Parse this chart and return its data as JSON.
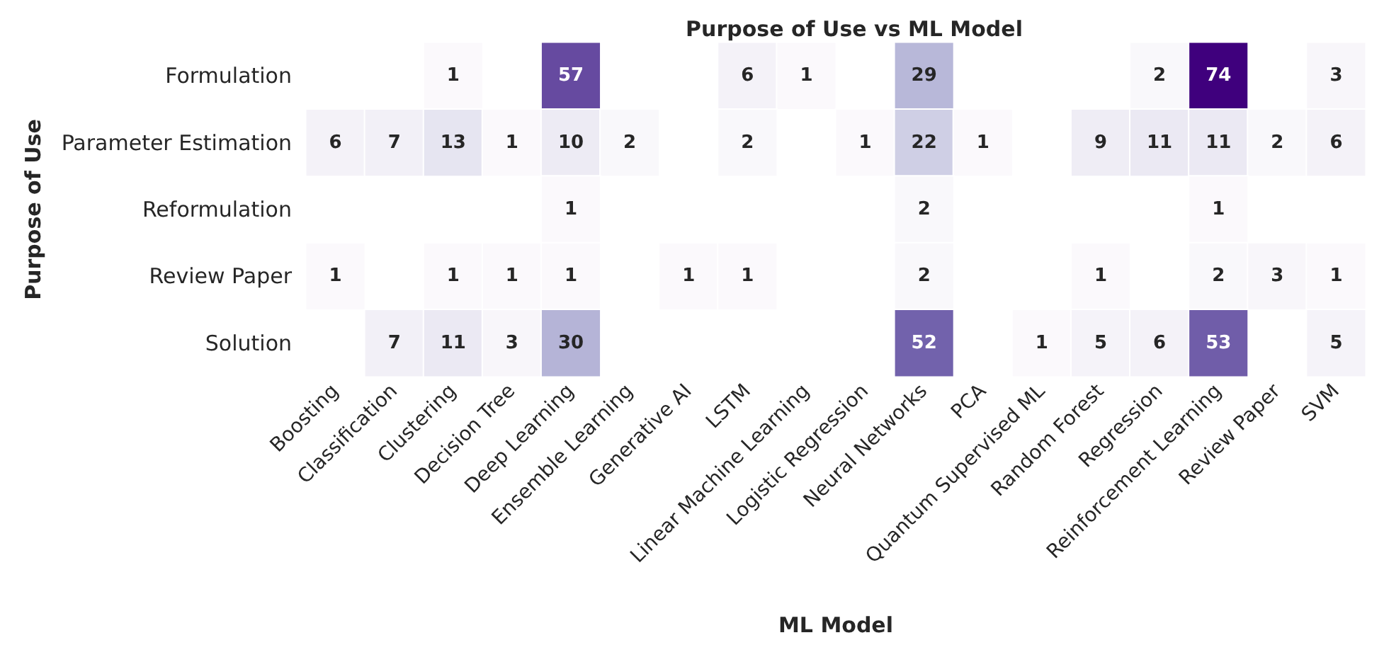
{
  "chart_data": {
    "type": "heatmap",
    "title": "Purpose of Use vs ML Model",
    "xlabel": "ML Model",
    "ylabel": "Purpose of Use",
    "categories": [
      "Boosting",
      "Classification",
      "Clustering",
      "Decision Tree",
      "Deep Learning",
      "Ensemble Learning",
      "Generative AI",
      "LSTM",
      "Linear Machine Learning",
      "Logistic Regression",
      "Neural Networks",
      "PCA",
      "Quantum Supervised ML",
      "Random Forest",
      "Regression",
      "Reinforcement Learning",
      "Review Paper",
      "SVM"
    ],
    "y_categories": [
      "Formulation",
      "Parameter Estimation",
      "Reformulation",
      "Review Paper",
      "Solution"
    ],
    "cells": [
      [
        null,
        null,
        1,
        null,
        57,
        null,
        null,
        6,
        1,
        null,
        29,
        null,
        null,
        null,
        2,
        74,
        null,
        3
      ],
      [
        6,
        7,
        13,
        1,
        10,
        2,
        null,
        2,
        null,
        1,
        22,
        1,
        null,
        9,
        11,
        11,
        2,
        6
      ],
      [
        null,
        null,
        null,
        null,
        1,
        null,
        null,
        null,
        null,
        null,
        2,
        null,
        null,
        null,
        null,
        1,
        null,
        null
      ],
      [
        1,
        null,
        1,
        1,
        1,
        null,
        1,
        1,
        null,
        null,
        2,
        null,
        null,
        1,
        null,
        2,
        3,
        1
      ],
      [
        null,
        7,
        11,
        3,
        30,
        null,
        null,
        null,
        null,
        null,
        52,
        null,
        1,
        5,
        6,
        53,
        null,
        5
      ]
    ],
    "data_labels": true
  }
}
